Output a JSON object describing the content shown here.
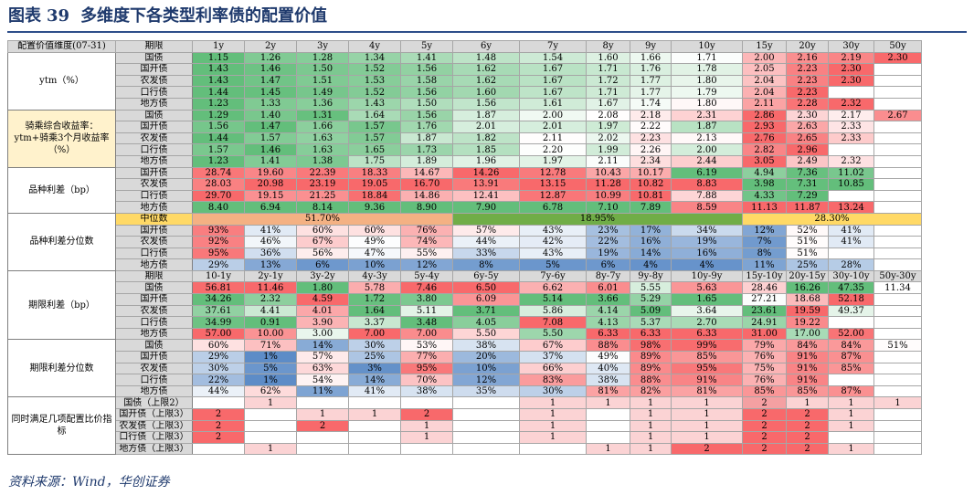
{
  "figure": {
    "label": "图表",
    "number": "39",
    "title": "多维度下各类型利率债的配置价值"
  },
  "source": "资料来源：Wind，华创证券",
  "chart_data": {
    "type": "table",
    "corner": "配置价值维度(07-31)",
    "tenor_header_label": "期限",
    "tenors": [
      "1y",
      "2y",
      "3y",
      "4y",
      "5y",
      "6y",
      "7y",
      "8y",
      "9y",
      "10y",
      "15y",
      "20y",
      "30y",
      "50y"
    ],
    "bonds": [
      "国债",
      "国开债",
      "农发债",
      "口行债",
      "地方债"
    ],
    "sections": [
      {
        "name": "ytm（%）",
        "rows": [
          [
            "1.15",
            "1.26",
            "1.28",
            "1.34",
            "1.41",
            "1.48",
            "1.54",
            "1.60",
            "1.66",
            "1.71",
            "2.00",
            "2.16",
            "2.19",
            "2.30"
          ],
          [
            "1.43",
            "1.46",
            "1.50",
            "1.52",
            "1.56",
            "1.62",
            "1.67",
            "1.71",
            "1.76",
            "1.78",
            "2.05",
            "2.23",
            "2.30",
            ""
          ],
          [
            "1.43",
            "1.47",
            "1.51",
            "1.53",
            "1.58",
            "1.62",
            "1.67",
            "1.72",
            "1.77",
            "1.80",
            "2.04",
            "2.23",
            "2.30",
            ""
          ],
          [
            "1.44",
            "1.45",
            "1.49",
            "1.52",
            "1.56",
            "1.60",
            "1.67",
            "1.71",
            "1.77",
            "1.79",
            "2.04",
            "2.23",
            "",
            ""
          ],
          [
            "1.23",
            "1.33",
            "1.36",
            "1.43",
            "1.50",
            "1.56",
            "1.61",
            "1.67",
            "1.74",
            "1.80",
            "2.11",
            "2.28",
            "2.32",
            ""
          ]
        ]
      },
      {
        "name": "骑乘综合收益率：ytm+骑乘3个月收益率（%）",
        "rows": [
          [
            "1.29",
            "1.40",
            "1.31",
            "1.64",
            "1.56",
            "1.87",
            "2.00",
            "2.08",
            "2.18",
            "2.31",
            "2.86",
            "2.30",
            "2.17",
            "2.67"
          ],
          [
            "1.56",
            "1.47",
            "1.66",
            "1.57",
            "1.76",
            "2.01",
            "2.01",
            "1.97",
            "2.22",
            "1.87",
            "2.93",
            "2.63",
            "2.33",
            ""
          ],
          [
            "1.44",
            "1.57",
            "1.63",
            "1.57",
            "1.87",
            "1.82",
            "2.11",
            "2.02",
            "2.23",
            "2.13",
            "2.76",
            "2.65",
            "2.33",
            ""
          ],
          [
            "1.57",
            "1.46",
            "1.63",
            "1.65",
            "1.73",
            "1.85",
            "2.20",
            "1.99",
            "2.26",
            "2.00",
            "2.82",
            "2.96",
            "",
            ""
          ],
          [
            "1.23",
            "1.41",
            "1.38",
            "1.75",
            "1.89",
            "1.96",
            "1.97",
            "2.11",
            "2.34",
            "2.44",
            "3.05",
            "2.49",
            "2.32",
            ""
          ]
        ]
      },
      {
        "name": "品种利差（bp）",
        "bonds": [
          "国开债",
          "农发债",
          "口行债",
          "地方债"
        ],
        "rows": [
          [
            "28.74",
            "19.60",
            "22.39",
            "18.33",
            "14.67",
            "14.26",
            "12.78",
            "10.43",
            "10.17",
            "6.19",
            "4.94",
            "7.36",
            "11.02",
            ""
          ],
          [
            "28.03",
            "20.98",
            "23.19",
            "19.05",
            "16.70",
            "13.91",
            "13.15",
            "11.28",
            "10.82",
            "8.83",
            "3.98",
            "7.31",
            "10.85",
            ""
          ],
          [
            "29.70",
            "19.15",
            "21.25",
            "18.84",
            "14.86",
            "12.41",
            "12.87",
            "10.99",
            "10.81",
            "7.88",
            "4.33",
            "7.29",
            "",
            ""
          ],
          [
            "8.40",
            "6.94",
            "8.14",
            "9.36",
            "8.90",
            "7.90",
            "6.78",
            "7.10",
            "7.89",
            "8.59",
            "11.13",
            "11.87",
            "13.24",
            ""
          ]
        ]
      },
      {
        "name": "品种利差分位数",
        "median_label": "中位数",
        "medians": [
          "51.70%",
          "18.95%",
          "28.30%"
        ],
        "bonds": [
          "国开债",
          "农发债",
          "口行债",
          "地方债"
        ],
        "rows": [
          [
            "93%",
            "41%",
            "60%",
            "60%",
            "76%",
            "57%",
            "43%",
            "23%",
            "17%",
            "34%",
            "12%",
            "52%",
            "41%",
            ""
          ],
          [
            "92%",
            "46%",
            "67%",
            "49%",
            "74%",
            "44%",
            "42%",
            "22%",
            "16%",
            "19%",
            "7%",
            "51%",
            "41%",
            ""
          ],
          [
            "95%",
            "36%",
            "56%",
            "47%",
            "55%",
            "33%",
            "43%",
            "19%",
            "14%",
            "16%",
            "8%",
            "51%",
            "",
            ""
          ],
          [
            "29%",
            "13%",
            "6%",
            "10%",
            "12%",
            "8%",
            "5%",
            "6%",
            "4%",
            "4%",
            "11%",
            "25%",
            "28%",
            ""
          ]
        ]
      },
      {
        "name": "期限利差（bp）",
        "spread_tenors": [
          "10-1y",
          "2y-1y",
          "3y-2y",
          "4y-3y",
          "5y-4y",
          "6y-5y",
          "7y-6y",
          "8y-7y",
          "9y-8y",
          "10y-9y",
          "15y-10y",
          "20y-15y",
          "30y-10y",
          "50y-30y"
        ],
        "rows": [
          [
            "56.81",
            "11.46",
            "1.80",
            "5.78",
            "7.46",
            "6.50",
            "6.62",
            "6.01",
            "5.55",
            "5.63",
            "28.46",
            "16.26",
            "47.35",
            "11.34"
          ],
          [
            "34.26",
            "2.32",
            "4.59",
            "1.72",
            "3.80",
            "6.09",
            "5.14",
            "3.66",
            "5.29",
            "1.65",
            "27.21",
            "18.68",
            "52.18",
            ""
          ],
          [
            "37.61",
            "4.41",
            "4.01",
            "1.64",
            "5.11",
            "3.71",
            "5.86",
            "4.14",
            "5.09",
            "3.64",
            "23.61",
            "19.59",
            "49.37",
            ""
          ],
          [
            "34.99",
            "0.91",
            "3.90",
            "3.37",
            "3.48",
            "4.05",
            "7.08",
            "4.13",
            "5.37",
            "2.70",
            "24.91",
            "19.22",
            "",
            ""
          ],
          [
            "57.00",
            "10.00",
            "3.00",
            "7.00",
            "7.00",
            "5.50",
            "5.50",
            "6.33",
            "6.33",
            "6.33",
            "31.00",
            "17.00",
            "52.00",
            ""
          ]
        ]
      },
      {
        "name": "期限利差分位数",
        "rows": [
          [
            "60%",
            "71%",
            "14%",
            "30%",
            "53%",
            "38%",
            "67%",
            "88%",
            "98%",
            "99%",
            "79%",
            "84%",
            "84%",
            "51%"
          ],
          [
            "29%",
            "1%",
            "57%",
            "25%",
            "77%",
            "20%",
            "37%",
            "49%",
            "89%",
            "85%",
            "76%",
            "91%",
            "87%",
            ""
          ],
          [
            "30%",
            "5%",
            "63%",
            "3%",
            "95%",
            "10%",
            "66%",
            "40%",
            "89%",
            "95%",
            "75%",
            "91%",
            "85%",
            ""
          ],
          [
            "22%",
            "1%",
            "54%",
            "14%",
            "70%",
            "12%",
            "83%",
            "38%",
            "88%",
            "91%",
            "76%",
            "91%",
            "",
            ""
          ],
          [
            "44%",
            "62%",
            "11%",
            "41%",
            "38%",
            "35%",
            "30%",
            "81%",
            "82%",
            "81%",
            "85%",
            "85%",
            "87%",
            ""
          ]
        ]
      },
      {
        "name": "同时满足几项配置比价指标",
        "bonds": [
          "国债（上限2）",
          "国开债（上限3）",
          "农发债（上限3）",
          "口行债（上限3）",
          "地方债（上限3）"
        ],
        "rows": [
          [
            "",
            "1",
            "",
            "",
            "",
            "",
            "1",
            "1",
            "1",
            "1",
            "2",
            "1",
            "1",
            "1"
          ],
          [
            "2",
            "",
            "1",
            "1",
            "2",
            "",
            "1",
            "",
            "1",
            "1",
            "2",
            "2",
            "1",
            ""
          ],
          [
            "2",
            "",
            "2",
            "",
            "1",
            "",
            "1",
            "",
            "1",
            "1",
            "2",
            "2",
            "1",
            ""
          ],
          [
            "2",
            "",
            "",
            "",
            "1",
            "",
            "1",
            "",
            "1",
            "1",
            "2",
            "2",
            "",
            ""
          ],
          [
            "",
            "1",
            "",
            "",
            "",
            "",
            "",
            "1",
            "1",
            "2",
            "2",
            "2",
            "1",
            ""
          ]
        ]
      }
    ],
    "colors": {
      "green": "#63be7b",
      "red": "#f8696b",
      "blue": "#5a8ac6",
      "white": "#ffffff",
      "median_red": "#f4b183",
      "median_green": "#70ad47",
      "median_yellow": "#ffd966",
      "header": "#d9d9d9",
      "label_yellow": "#fff2cc"
    }
  }
}
